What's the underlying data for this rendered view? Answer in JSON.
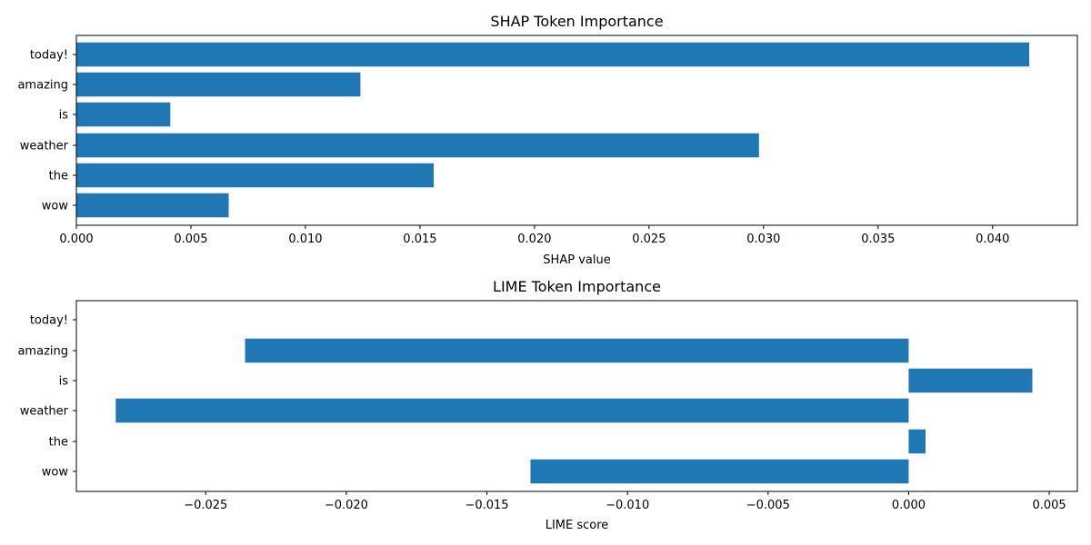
{
  "chart_data": [
    {
      "type": "bar",
      "orientation": "horizontal",
      "title": "SHAP Token Importance",
      "xlabel": "SHAP value",
      "ylabel": "",
      "categories": [
        "wow",
        "the",
        "weather",
        "is",
        "amazing",
        "today!"
      ],
      "values": [
        0.00665,
        0.0156,
        0.0298,
        0.0041,
        0.0124,
        0.0416
      ],
      "xlim": [
        0.0,
        0.0437
      ],
      "xticks": [
        0.0,
        0.005,
        0.01,
        0.015,
        0.02,
        0.025,
        0.03,
        0.035,
        0.04
      ],
      "xtick_labels": [
        "0.000",
        "0.005",
        "0.010",
        "0.015",
        "0.020",
        "0.025",
        "0.030",
        "0.035",
        "0.040"
      ],
      "color": "#1f77b4",
      "grid": false
    },
    {
      "type": "bar",
      "orientation": "horizontal",
      "title": "LIME Token Importance",
      "xlabel": "LIME score",
      "ylabel": "",
      "categories": [
        "wow",
        "the",
        "weather",
        "is",
        "amazing",
        "today!"
      ],
      "values": [
        -0.01345,
        0.0006,
        -0.0282,
        0.0044,
        -0.0236,
        0.0
      ],
      "xlim": [
        -0.0296,
        0.006
      ],
      "xticks": [
        -0.025,
        -0.02,
        -0.015,
        -0.01,
        -0.005,
        0.0,
        0.005
      ],
      "xtick_labels": [
        "−0.025",
        "−0.020",
        "−0.015",
        "−0.010",
        "−0.005",
        "0.000",
        "0.005"
      ],
      "color": "#1f77b4",
      "grid": false
    }
  ]
}
